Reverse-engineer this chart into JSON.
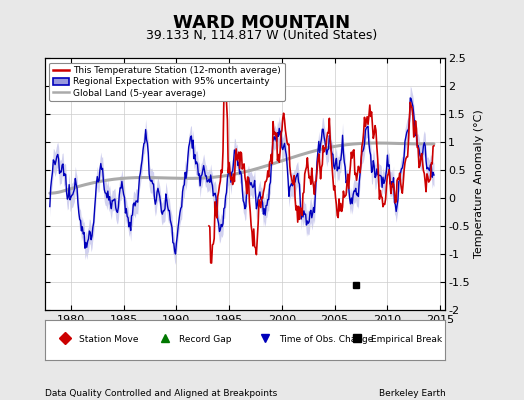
{
  "title": "WARD MOUNTAIN",
  "subtitle": "39.133 N, 114.817 W (United States)",
  "ylabel": "Temperature Anomaly (°C)",
  "xlabel_left": "Data Quality Controlled and Aligned at Breakpoints",
  "xlabel_right": "Berkeley Earth",
  "xlim": [
    1977.5,
    2015.5
  ],
  "ylim": [
    -2.0,
    2.5
  ],
  "yticks": [
    -2,
    -1.5,
    -1,
    -0.5,
    0,
    0.5,
    1,
    1.5,
    2,
    2.5
  ],
  "xticks": [
    1980,
    1985,
    1990,
    1995,
    2000,
    2005,
    2010,
    2015
  ],
  "empirical_break_year": 2007.0,
  "empirical_break_value": -1.55,
  "background_color": "#e8e8e8",
  "plot_bg_color": "#ffffff",
  "red_color": "#cc0000",
  "blue_color": "#0000bb",
  "blue_shade_color": "#9999dd",
  "gray_color": "#aaaaaa",
  "title_fontsize": 13,
  "subtitle_fontsize": 9,
  "tick_fontsize": 8,
  "ylabel_fontsize": 8
}
